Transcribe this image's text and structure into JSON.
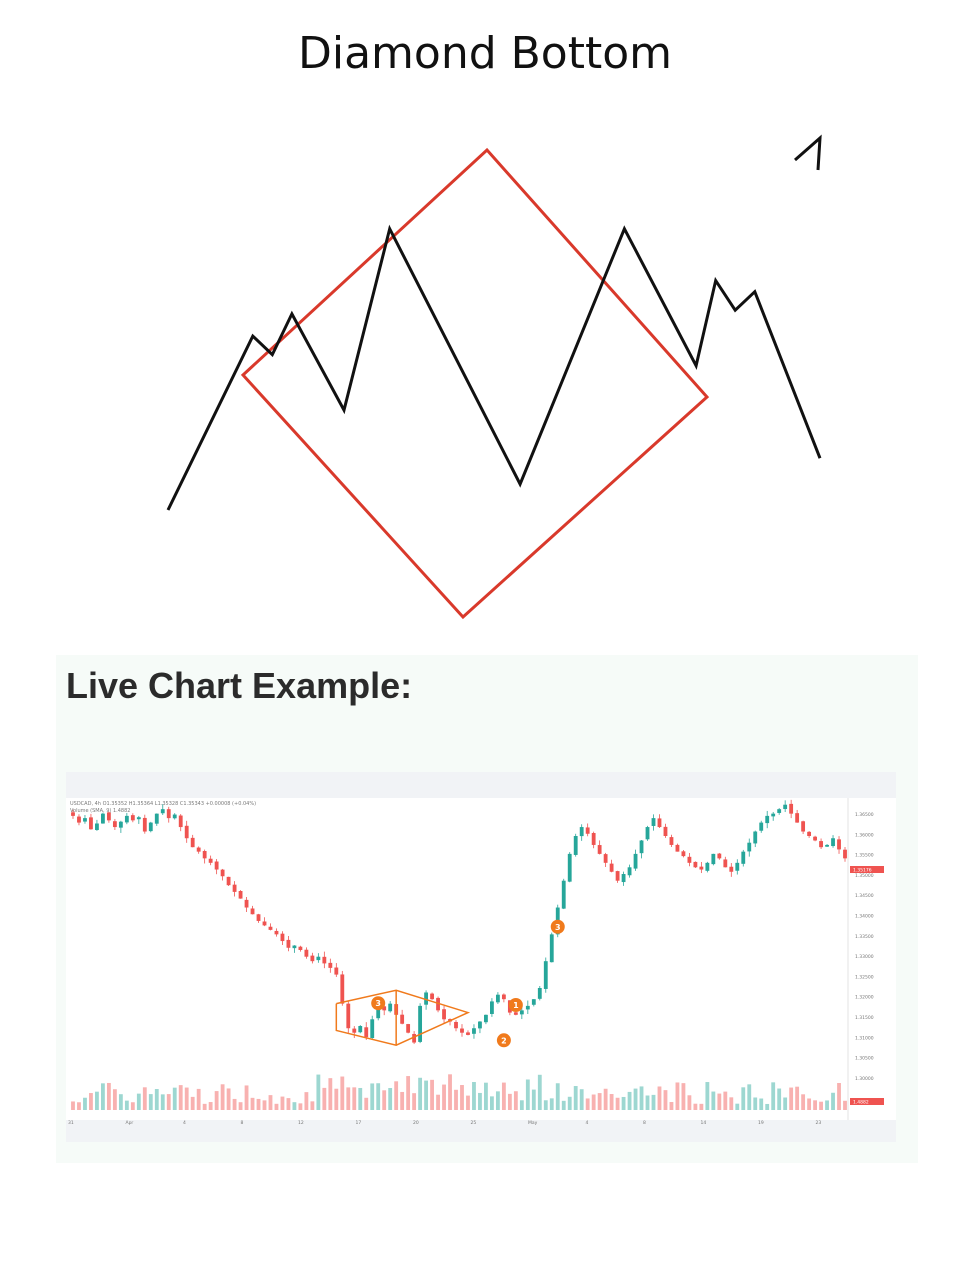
{
  "title": "Diamond Bottom",
  "subtitle": "Live Chart Example:",
  "colors": {
    "diamond_outline": "#d9392b",
    "price_path": "#111111",
    "bull_candle": "#26a69a",
    "bear_candle": "#ef5350",
    "pattern_marker": "#f07a1c",
    "price_badge": "#ef5350"
  },
  "diagram_labels": [],
  "chart_data": [
    {
      "type": "line",
      "title": "Diamond Bottom",
      "description_of_series": "price path inside diamond",
      "grid": false,
      "legend": "none",
      "series": [
        {
          "values": [
            [
              0.0,
              1.0
            ],
            [
              0.13,
              0.53
            ],
            [
              0.16,
              0.58
            ],
            [
              0.19,
              0.47
            ],
            [
              0.27,
              0.73
            ],
            [
              0.34,
              0.24
            ],
            [
              0.54,
              0.93
            ],
            [
              0.7,
              0.24
            ],
            [
              0.81,
              0.61
            ],
            [
              0.84,
              0.38
            ],
            [
              0.87,
              0.46
            ],
            [
              0.9,
              0.41
            ],
            [
              1.0,
              0.86
            ]
          ]
        }
      ]
    },
    {
      "type": "candlestick",
      "symbol_line": "USDCAD, 4h  O1.35352  H1.35364  L1.35328  C1.35343  +0.00008 (+0.04%)",
      "volume_line": "Volume (SMA, 9)  1.4882",
      "x_tick_labels": [
        "31",
        "Apr",
        "4",
        "8",
        "12",
        "17",
        "20",
        "25",
        "May",
        "4",
        "8",
        "14",
        "19",
        "23"
      ],
      "y_tick_labels": [
        "1.36500",
        "1.36000",
        "1.35500",
        "1.35000",
        "1.34500",
        "1.34000",
        "1.33500",
        "1.33000",
        "1.32500",
        "1.32000",
        "1.31500",
        "1.31000",
        "1.30500",
        "1.30000"
      ],
      "ylim": [
        1.2985,
        1.3665
      ],
      "last_price": "1.35176",
      "volume_badge": "1.4882",
      "markers": [
        "1",
        "2",
        "3",
        "3"
      ],
      "close_path": [
        1.3625,
        1.361,
        1.362,
        1.3595,
        1.3608,
        1.363,
        1.3615,
        1.36,
        1.3612,
        1.3625,
        1.3615,
        1.3622,
        1.359,
        1.361,
        1.363,
        1.364,
        1.362,
        1.3628,
        1.36,
        1.3575,
        1.3555,
        1.3545,
        1.353,
        1.352,
        1.3505,
        1.349,
        1.347,
        1.3455,
        1.344,
        1.342,
        1.3405,
        1.339,
        1.338,
        1.337,
        1.336,
        1.3345,
        1.333,
        1.3335,
        1.3325,
        1.331,
        1.33,
        1.331,
        1.3295,
        1.3285,
        1.327,
        1.3205,
        1.315,
        1.314,
        1.3155,
        1.313,
        1.317,
        1.32,
        1.319,
        1.3205,
        1.318,
        1.316,
        1.314,
        1.3118,
        1.32,
        1.323,
        1.3215,
        1.319,
        1.317,
        1.3165,
        1.315,
        1.314,
        1.3135,
        1.315,
        1.3165,
        1.318,
        1.321,
        1.3225,
        1.3215,
        1.3185,
        1.318,
        1.319,
        1.32,
        1.3215,
        1.324,
        1.33,
        1.336,
        1.342,
        1.348,
        1.354,
        1.358,
        1.36,
        1.3585,
        1.356,
        1.354,
        1.352,
        1.35,
        1.348,
        1.3495,
        1.351,
        1.354,
        1.357,
        1.36,
        1.362,
        1.36,
        1.358,
        1.356,
        1.3545,
        1.3535,
        1.352,
        1.351,
        1.3505,
        1.352,
        1.354,
        1.353,
        1.351,
        1.35,
        1.352,
        1.3545,
        1.3565,
        1.359,
        1.361,
        1.3625,
        1.363,
        1.364,
        1.365,
        1.363,
        1.361,
        1.359,
        1.358,
        1.357,
        1.3555,
        1.356,
        1.3575,
        1.355,
        1.353
      ]
    }
  ]
}
